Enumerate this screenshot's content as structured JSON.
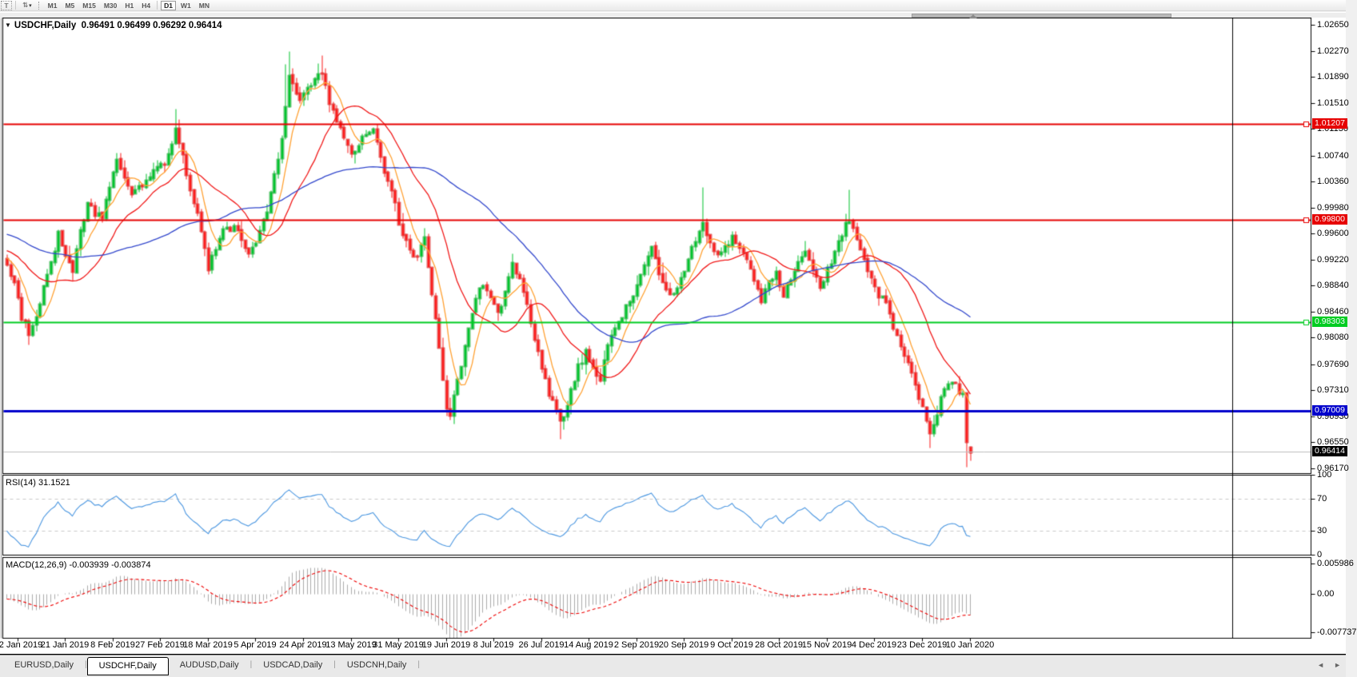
{
  "toolbar": {
    "text_tool_label": "T",
    "dropdown_icon": "⇅",
    "dropdown_caret": "▾",
    "timeframes": [
      "M1",
      "M5",
      "M15",
      "M30",
      "H1",
      "H4",
      "D1",
      "W1",
      "MN"
    ],
    "active_timeframe": "D1"
  },
  "chart": {
    "expander_icon": "▼",
    "symbol_period": "USDCHF,Daily",
    "quotes": "0.96491 0.96499 0.96292 0.96414"
  },
  "price_axis": {
    "ticks": [
      "1.02650",
      "1.02270",
      "1.01890",
      "1.01510",
      "1.01130",
      "1.00740",
      "1.00360",
      "0.99980",
      "0.99600",
      "0.99220",
      "0.98840",
      "0.98460",
      "0.98080",
      "0.97690",
      "0.97310",
      "0.96930",
      "0.96550",
      "0.96170"
    ]
  },
  "levels": [
    {
      "label": "1.01207",
      "price": 1.01207,
      "color": "#e60000",
      "width": 2,
      "marker": true
    },
    {
      "label": "0.99800",
      "price": 0.998,
      "color": "#e60000",
      "width": 2,
      "marker": true
    },
    {
      "label": "0.98303",
      "price": 0.98303,
      "color": "#00cc22",
      "width": 2,
      "marker": true
    },
    {
      "label": "0.97009",
      "price": 0.97009,
      "color": "#0000cc",
      "width": 3,
      "marker": false
    }
  ],
  "current_price": {
    "label": "0.96414",
    "price": 0.96414,
    "line_color": "#bdbdbd",
    "box_color": "#000000"
  },
  "rsi_panel": {
    "label": "RSI(14) 31.1521",
    "ticks": [
      {
        "label": "100",
        "value": 100
      },
      {
        "label": "70",
        "value": 70
      },
      {
        "label": "30",
        "value": 30
      },
      {
        "label": "0",
        "value": 0
      }
    ],
    "dashed_levels": [
      70,
      30
    ],
    "line_color": "#4a96e0"
  },
  "macd_panel": {
    "label": "MACD(12,26,9) -0.003939 -0.003874",
    "ticks": [
      {
        "label": "0.005986",
        "value": 0.005986
      },
      {
        "label": "0.00",
        "value": 0
      },
      {
        "label": "-0.007737",
        "value": -0.007737
      }
    ],
    "hist_color": "#ababab",
    "signal_color": "#ee0000"
  },
  "date_axis": {
    "labels": [
      "2 Jan 2019",
      "21 Jan 2019",
      "8 Feb 2019",
      "27 Feb 2019",
      "18 Mar 2019",
      "5 Apr 2019",
      "24 Apr 2019",
      "13 May 2019",
      "31 May 2019",
      "19 Jun 2019",
      "8 Jul 2019",
      "26 Jul 2019",
      "14 Aug 2019",
      "2 Sep 2019",
      "20 Sep 2019",
      "9 Oct 2019",
      "28 Oct 2019",
      "15 Nov 2019",
      "4 Dec 2019",
      "23 Dec 2019",
      "10 Jan 2020"
    ],
    "first_index": 3,
    "step": 13
  },
  "tabs": {
    "items": [
      "EURUSD,Daily",
      "USDCHF,Daily",
      "AUDUSD,Daily",
      "USDCAD,Daily",
      "USDCNH,Daily"
    ],
    "active": 1,
    "scroll_left_icon": "◄",
    "scroll_right_icon": "►"
  },
  "chart_data": {
    "type": "candlestick",
    "symbol": "USDCHF",
    "timeframe": "Daily",
    "title": "USDCHF,Daily",
    "last_ohlc": {
      "open": 0.96491,
      "high": 0.96499,
      "low": 0.96292,
      "close": 0.96414
    },
    "ylim": [
      0.96112,
      1.02743
    ],
    "candle_count": 264,
    "seed": 20200110,
    "noise": 0.0006,
    "wick": 0.0013,
    "bull_color": "#00c22c",
    "bull_border": "#009a1f",
    "bear_color": "#fb1b1b",
    "bear_border": "#cc0000",
    "prehistory_anchors": [
      [
        -60,
        1.0
      ],
      [
        -40,
        0.998
      ],
      [
        -20,
        0.995
      ],
      [
        -1,
        0.9925
      ]
    ],
    "close_anchors": [
      [
        0,
        0.992
      ],
      [
        2,
        0.9886
      ],
      [
        4,
        0.984
      ],
      [
        6,
        0.9815
      ],
      [
        8,
        0.9842
      ],
      [
        11,
        0.9905
      ],
      [
        14,
        0.9958
      ],
      [
        16,
        0.9926
      ],
      [
        18,
        0.9907
      ],
      [
        20,
        0.996
      ],
      [
        22,
        1.0008
      ],
      [
        24,
        0.999
      ],
      [
        26,
        0.9984
      ],
      [
        28,
        1.003
      ],
      [
        30,
        1.0068
      ],
      [
        32,
        1.004
      ],
      [
        34,
        1.0015
      ],
      [
        36,
        1.0028
      ],
      [
        39,
        1.0042
      ],
      [
        41,
        1.0058
      ],
      [
        43,
        1.0066
      ],
      [
        45,
        1.009
      ],
      [
        46,
        1.0118
      ],
      [
        47,
        1.0098
      ],
      [
        48,
        1.0078
      ],
      [
        50,
        1.0022
      ],
      [
        52,
        0.9986
      ],
      [
        55,
        0.9906
      ],
      [
        57,
        0.994
      ],
      [
        59,
        0.9962
      ],
      [
        62,
        0.9972
      ],
      [
        64,
        0.995
      ],
      [
        66,
        0.993
      ],
      [
        68,
        0.9952
      ],
      [
        70,
        0.9976
      ],
      [
        72,
        1.0018
      ],
      [
        74,
        1.007
      ],
      [
        76,
        1.014
      ],
      [
        77,
        1.0188
      ],
      [
        78,
        1.0175
      ],
      [
        79,
        1.0165
      ],
      [
        80,
        1.0152
      ],
      [
        82,
        1.0172
      ],
      [
        84,
        1.0188
      ],
      [
        86,
        1.0196
      ],
      [
        88,
        1.015
      ],
      [
        90,
        1.0126
      ],
      [
        92,
        1.0096
      ],
      [
        94,
        1.0076
      ],
      [
        96,
        1.0092
      ],
      [
        98,
        1.0104
      ],
      [
        100,
        1.0116
      ],
      [
        102,
        1.0074
      ],
      [
        104,
        1.0036
      ],
      [
        106,
        1.0
      ],
      [
        108,
        0.9958
      ],
      [
        110,
        0.9934
      ],
      [
        112,
        0.993
      ],
      [
        114,
        0.996
      ],
      [
        116,
        0.9874
      ],
      [
        118,
        0.9792
      ],
      [
        120,
        0.9708
      ],
      [
        121,
        0.9698
      ],
      [
        122,
        0.9728
      ],
      [
        124,
        0.9766
      ],
      [
        126,
        0.982
      ],
      [
        128,
        0.9866
      ],
      [
        130,
        0.9884
      ],
      [
        132,
        0.9866
      ],
      [
        134,
        0.9846
      ],
      [
        136,
        0.9872
      ],
      [
        138,
        0.9914
      ],
      [
        140,
        0.989
      ],
      [
        142,
        0.9856
      ],
      [
        144,
        0.9808
      ],
      [
        146,
        0.9768
      ],
      [
        148,
        0.9724
      ],
      [
        150,
        0.97
      ],
      [
        151,
        0.9682
      ],
      [
        152,
        0.9694
      ],
      [
        154,
        0.973
      ],
      [
        156,
        0.9766
      ],
      [
        158,
        0.9786
      ],
      [
        160,
        0.976
      ],
      [
        162,
        0.9744
      ],
      [
        164,
        0.98
      ],
      [
        166,
        0.9822
      ],
      [
        168,
        0.984
      ],
      [
        171,
        0.9874
      ],
      [
        173,
        0.9898
      ],
      [
        175,
        0.9924
      ],
      [
        176,
        0.9936
      ],
      [
        178,
        0.9902
      ],
      [
        180,
        0.9878
      ],
      [
        182,
        0.987
      ],
      [
        184,
        0.9896
      ],
      [
        186,
        0.992
      ],
      [
        188,
        0.9952
      ],
      [
        190,
        0.9978
      ],
      [
        192,
        0.9942
      ],
      [
        194,
        0.9924
      ],
      [
        196,
        0.994
      ],
      [
        198,
        0.9956
      ],
      [
        200,
        0.9938
      ],
      [
        202,
        0.992
      ],
      [
        204,
        0.989
      ],
      [
        206,
        0.9864
      ],
      [
        208,
        0.9886
      ],
      [
        210,
        0.9902
      ],
      [
        212,
        0.9872
      ],
      [
        214,
        0.9896
      ],
      [
        216,
        0.9918
      ],
      [
        218,
        0.993
      ],
      [
        220,
        0.9912
      ],
      [
        222,
        0.9886
      ],
      [
        224,
        0.9906
      ],
      [
        226,
        0.9936
      ],
      [
        228,
        0.996
      ],
      [
        230,
        0.9984
      ],
      [
        232,
        0.9956
      ],
      [
        234,
        0.992
      ],
      [
        236,
        0.9892
      ],
      [
        238,
        0.9872
      ],
      [
        240,
        0.9856
      ],
      [
        242,
        0.9824
      ],
      [
        244,
        0.9796
      ],
      [
        246,
        0.9778
      ],
      [
        248,
        0.9744
      ],
      [
        250,
        0.9704
      ],
      [
        252,
        0.9668
      ],
      [
        253,
        0.9676
      ],
      [
        255,
        0.9718
      ],
      [
        257,
        0.9742
      ],
      [
        259,
        0.9736
      ],
      [
        261,
        0.9724
      ],
      [
        262,
        0.9656
      ],
      [
        263,
        0.96414
      ]
    ],
    "forced_extremes": [
      [
        46,
        "high",
        1.0142
      ],
      [
        76,
        "high",
        1.0208
      ],
      [
        77,
        "high",
        1.0227
      ],
      [
        86,
        "high",
        1.0221
      ],
      [
        120,
        "low",
        0.9695
      ],
      [
        151,
        "low",
        0.966
      ],
      [
        190,
        "high",
        1.0028
      ],
      [
        230,
        "high",
        1.0024
      ],
      [
        252,
        "low",
        0.9648
      ],
      [
        262,
        "low",
        0.962
      ]
    ],
    "moving_averages": [
      {
        "period": 7,
        "color": "#ffa133"
      },
      {
        "period": 21,
        "color": "#f01818"
      },
      {
        "period": 55,
        "color": "#3348cc"
      }
    ],
    "rsi": {
      "period": 14,
      "current": 31.1521,
      "ylim": [
        0,
        100
      ]
    },
    "macd": {
      "fast": 12,
      "slow": 26,
      "signal": 9,
      "current": [
        -0.003939,
        -0.003874
      ],
      "ylim": [
        -0.00878,
        0.00734
      ]
    },
    "horizontal_lines": [
      1.01207,
      0.998,
      0.98303,
      0.97009
    ]
  }
}
